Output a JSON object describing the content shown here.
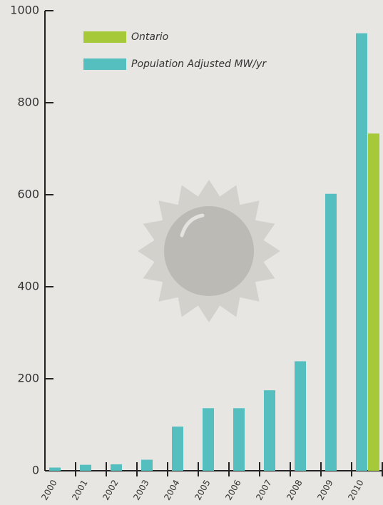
{
  "chart_data": {
    "type": "bar",
    "categories": [
      "2000",
      "2001",
      "2002",
      "2003",
      "2004",
      "2005",
      "2006",
      "2007",
      "2008",
      "2009",
      "2010"
    ],
    "series": [
      {
        "name": "Ontario",
        "color": "#a6c93a",
        "values": [
          null,
          null,
          null,
          null,
          null,
          null,
          null,
          null,
          null,
          null,
          733
        ]
      },
      {
        "name": "Population Adjusted MW/yr",
        "color": "#55bfc0",
        "values": [
          7,
          13,
          14,
          24,
          96,
          136,
          136,
          175,
          238,
          602,
          951
        ]
      }
    ],
    "ylim": [
      0,
      1000
    ],
    "yticks": [
      0,
      200,
      400,
      600,
      800,
      1000
    ]
  }
}
